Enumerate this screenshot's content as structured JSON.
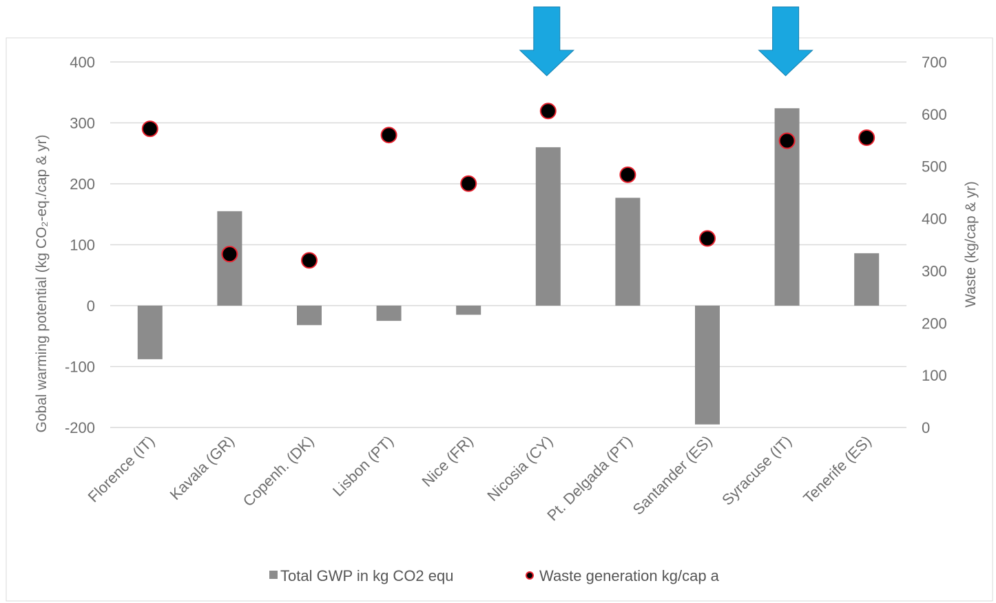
{
  "chart_data": {
    "type": "bar",
    "categories": [
      "Florence (IT)",
      "Kavala (GR)",
      "Copenh. (DK)",
      "Lisbon (PT)",
      "Nice (FR)",
      "Nicosia (CY)",
      "Pt. Delgada (PT)",
      "Santander (ES)",
      "Syracuse (IT)",
      "Tenerife (ES)"
    ],
    "series": [
      {
        "name": "Total GWP in kg CO2 equ",
        "type": "bar",
        "axis": "left",
        "values": [
          -88,
          155,
          -32,
          -25,
          -15,
          260,
          177,
          -195,
          324,
          86
        ]
      },
      {
        "name": "Waste generation kg/cap a",
        "type": "scatter",
        "axis": "right",
        "values": [
          572,
          332,
          320,
          560,
          467,
          606,
          484,
          362,
          549,
          555
        ]
      }
    ],
    "title": "",
    "ylabel": "Gobal warming potential  (kg CO₂-eq./cap & yr)",
    "y2label": "Waste  (kg/cap & yr)",
    "ylim": [
      -200,
      400
    ],
    "y2lim": [
      0,
      700
    ],
    "yticks": [
      "400",
      "300",
      "200",
      "100",
      "0",
      "-100",
      "-200"
    ],
    "y2ticks": [
      "700",
      "600",
      "500",
      "400",
      "300",
      "200",
      "100",
      "0"
    ],
    "grid": true,
    "legend_position": "bottom",
    "colors": {
      "bar": "#8c8c8c",
      "marker_fill": "#000000",
      "marker_edge": "#e8222e",
      "arrow": "#1aa7e0",
      "grid": "#d9d9d9",
      "text": "#6e6e6e"
    },
    "annotations": [
      {
        "type": "arrow-down",
        "target": "Nicosia (CY)"
      },
      {
        "type": "arrow-down",
        "target": "Syracuse (IT)"
      }
    ]
  }
}
